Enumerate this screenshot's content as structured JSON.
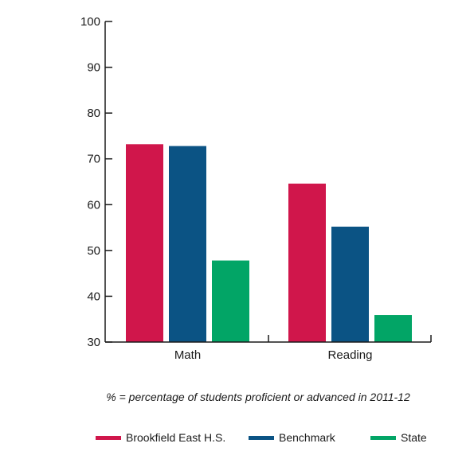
{
  "chart_data": {
    "type": "bar",
    "categories": [
      "Math",
      "Reading"
    ],
    "series": [
      {
        "name": "Brookfield East H.S.",
        "color": "#d0164b",
        "values": [
          73.2,
          64.6
        ]
      },
      {
        "name": "Benchmark",
        "color": "#0b5384",
        "values": [
          72.8,
          55.2
        ]
      },
      {
        "name": "State",
        "color": "#02a566",
        "values": [
          47.8,
          35.9
        ]
      }
    ],
    "ylim": [
      30,
      100
    ],
    "yticks": [
      30,
      40,
      50,
      60,
      70,
      80,
      90,
      100
    ],
    "grid": false,
    "legend_position": "bottom",
    "note": "% = percentage of students proficient or advanced in 2011-12"
  }
}
